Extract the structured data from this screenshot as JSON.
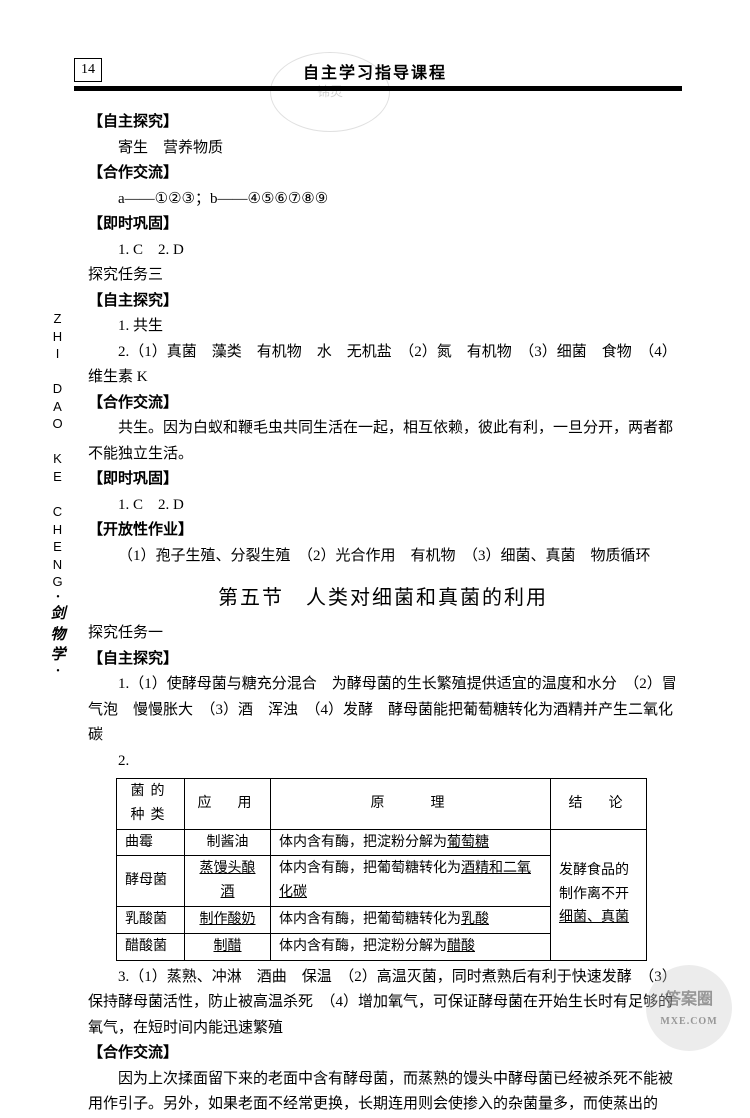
{
  "header": {
    "page_number": "14",
    "title": "自主学习指导课程"
  },
  "side_label": {
    "pinyin_lines": [
      "Z",
      "H",
      "I",
      "",
      "D",
      "A",
      "O",
      "",
      "K",
      "E",
      "",
      "C",
      "H",
      "E",
      "N",
      "G"
    ],
    "dot": "•",
    "cn_lines": [
      "剑",
      "物",
      "学"
    ],
    "trailing_dot": "•"
  },
  "stamp_text": "锦灵",
  "body": [
    {
      "type": "h",
      "text": "【自主探究】"
    },
    {
      "type": "p",
      "text": "寄生　营养物质"
    },
    {
      "type": "h",
      "text": "【合作交流】"
    },
    {
      "type": "p",
      "text": "a——①②③；b——④⑤⑥⑦⑧⑨"
    },
    {
      "type": "h",
      "text": "【即时巩固】"
    },
    {
      "type": "p",
      "text": "1. C　2. D"
    },
    {
      "type": "plain",
      "text": "探究任务三"
    },
    {
      "type": "h",
      "text": "【自主探究】"
    },
    {
      "type": "p",
      "text": "1. 共生"
    },
    {
      "type": "p",
      "text": "2.（1）真菌　藻类　有机物　水　无机盐　（2）氮　有机物　（3）细菌　食物　（4）维生素 K"
    },
    {
      "type": "h",
      "text": "【合作交流】"
    },
    {
      "type": "p",
      "text": "共生。因为白蚁和鞭毛虫共同生活在一起，相互依赖，彼此有利，一旦分开，两者都不能独立生活。"
    },
    {
      "type": "h",
      "text": "【即时巩固】"
    },
    {
      "type": "p",
      "text": "1. C　2. D"
    },
    {
      "type": "h",
      "text": "【开放性作业】"
    },
    {
      "type": "p",
      "text": "（1）孢子生殖、分裂生殖　（2）光合作用　有机物　（3）细菌、真菌　物质循环"
    }
  ],
  "section_title": "第五节　人类对细菌和真菌的利用",
  "body2": [
    {
      "type": "plain",
      "text": "探究任务一"
    },
    {
      "type": "h",
      "text": "【自主探究】"
    },
    {
      "type": "p",
      "text": "1.（1）使酵母菌与糖充分混合　为酵母菌的生长繁殖提供适宜的温度和水分　（2）冒气泡　慢慢胀大　（3）酒　浑浊　（4）发酵　酵母菌能把葡萄糖转化为酒精并产生二氧化碳"
    },
    {
      "type": "p",
      "text": "2."
    }
  ],
  "table": {
    "columns": [
      "菌的种类",
      "应　用",
      "原　　理",
      "结　论"
    ],
    "rows": [
      [
        "曲霉",
        "制酱油",
        "体内含有酶，把淀粉分解为葡萄糖"
      ],
      [
        "酵母菌",
        "蒸馒头酿酒",
        "体内含有酶，把葡萄糖转化为酒精和二氧化碳"
      ],
      [
        "乳酸菌",
        "制作酸奶",
        "体内含有酶，把葡萄糖转化为乳酸"
      ],
      [
        "醋酸菌",
        "制醋",
        "体内含有酶，把淀粉分解为醋酸"
      ]
    ],
    "underline_app": [
      false,
      true,
      true,
      true
    ],
    "underline_tail": [
      "葡萄糖",
      "酒精和二氧化碳",
      "乳酸",
      "醋酸"
    ],
    "conclusion": "发酵食品的制作离不开细菌、真菌",
    "conclusion_underline_start": "细菌、真菌",
    "col_widths": [
      "68px",
      "86px",
      "280px",
      "96px"
    ],
    "font_size": 14,
    "border_color": "#000000"
  },
  "body3": [
    {
      "type": "p",
      "text": "3.（1）蒸熟、冲淋　酒曲　保温　（2）高温灭菌，同时煮熟后有利于快速发酵　（3）保持酵母菌活性，防止被高温杀死　（4）增加氧气，可保证酵母菌在开始生长时有足够的氧气，在短时间内能迅速繁殖"
    },
    {
      "type": "h",
      "text": "【合作交流】"
    },
    {
      "type": "p",
      "text": "因为上次揉面留下来的老面中含有酵母菌，而蒸熟的馒头中酵母菌已经被杀死不能被用作引子。另外，如果老面不经常更换，长期连用则会使掺入的杂菌量多，而使蒸出的"
    }
  ],
  "watermark": {
    "main": "答案圈",
    "sub": "MXE.COM"
  },
  "colors": {
    "text": "#000000",
    "bg": "#ffffff",
    "rule": "#000000"
  }
}
